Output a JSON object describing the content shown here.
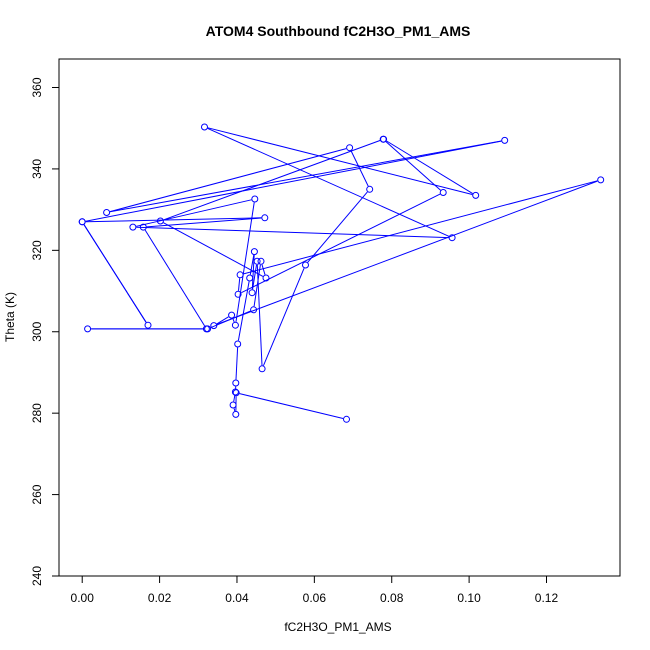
{
  "chart_data": {
    "type": "scatter",
    "mode": "lines+markers",
    "title": "ATOM4 Southbound fC2H3O_PM1_AMS",
    "xlabel": "fC2H3O_PM1_AMS",
    "ylabel": "Theta (K)",
    "xlim": [
      -0.006,
      0.139
    ],
    "ylim": [
      240,
      367
    ],
    "xticks": [
      0.0,
      0.02,
      0.04,
      0.06,
      0.08,
      0.1,
      0.12
    ],
    "xtick_labels": [
      "0.00",
      "0.02",
      "0.04",
      "0.06",
      "0.08",
      "0.10",
      "0.12"
    ],
    "yticks": [
      240,
      260,
      280,
      300,
      320,
      340,
      360
    ],
    "ytick_labels": [
      "240",
      "260",
      "280",
      "300",
      "320",
      "340",
      "360"
    ],
    "line_color": "#0000ff",
    "grid": false,
    "series": [
      {
        "x": [
          0.0683,
          0.0398,
          0.0397,
          0.039,
          0.0396,
          0.0397,
          0.0402,
          0.0433,
          0.0445,
          0.0439,
          0.0452,
          0.0465,
          0.0577,
          0.0743,
          0.0691,
          0.0063,
          0.1092,
          0.0,
          0.017,
          0.0,
          0.0472,
          0.0158,
          0.0321,
          0.0014,
          0.0324,
          0.0443,
          0.0462,
          0.0475,
          0.0202,
          0.0779,
          0.1017,
          0.0316,
          0.0956,
          0.0131,
          0.0446,
          0.0396,
          0.0386,
          0.034,
          0.134,
          0.0408,
          0.0403,
          0.0933,
          0.0778
        ],
        "y": [
          278.5,
          285.0,
          279.7,
          282.0,
          285.2,
          287.4,
          297.0,
          313.2,
          319.7,
          309.6,
          317.3,
          290.9,
          316.4,
          335.0,
          345.2,
          329.3,
          347.0,
          327.0,
          301.6,
          327.0,
          328.0,
          325.7,
          300.7,
          300.7,
          300.7,
          305.4,
          317.3,
          313.2,
          327.2,
          347.3,
          333.5,
          350.3,
          323.1,
          325.7,
          332.6,
          301.6,
          304.1,
          301.5,
          337.3,
          314.0,
          309.2,
          334.2,
          347.3
        ]
      }
    ]
  }
}
